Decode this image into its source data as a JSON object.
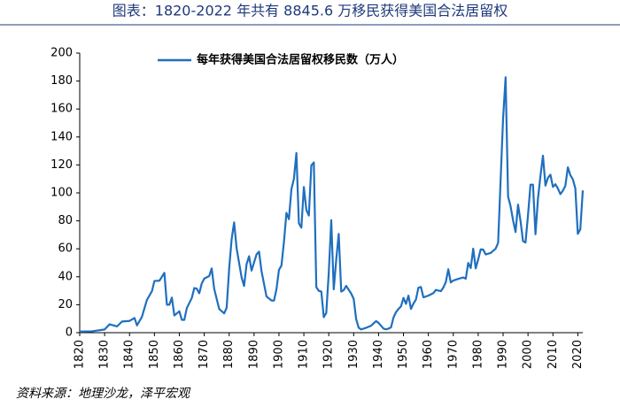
{
  "chart_data": {
    "type": "line",
    "title": "图表：1820-2022 年共有 8845.6 万移民获得美国合法居留权",
    "source": "资料来源：地理沙龙，泽平宏观",
    "x": [
      1820,
      1825,
      1830,
      1832,
      1835,
      1837,
      1840,
      1842,
      1843,
      1845,
      1847,
      1849,
      1850,
      1852,
      1854,
      1855,
      1856,
      1857,
      1858,
      1860,
      1861,
      1862,
      1863,
      1865,
      1866,
      1867,
      1868,
      1869,
      1870,
      1872,
      1873,
      1874,
      1876,
      1878,
      1879,
      1880,
      1881,
      1882,
      1883,
      1885,
      1886,
      1887,
      1888,
      1889,
      1891,
      1892,
      1893,
      1895,
      1897,
      1898,
      1899,
      1900,
      1901,
      1902,
      1903,
      1904,
      1905,
      1906,
      1907,
      1908,
      1909,
      1910,
      1911,
      1912,
      1913,
      1914,
      1915,
      1916,
      1917,
      1918,
      1919,
      1920,
      1921,
      1922,
      1923,
      1924,
      1925,
      1926,
      1927,
      1928,
      1929,
      1930,
      1931,
      1932,
      1933,
      1935,
      1937,
      1939,
      1940,
      1942,
      1943,
      1944,
      1945,
      1946,
      1947,
      1948,
      1949,
      1950,
      1951,
      1952,
      1953,
      1954,
      1955,
      1956,
      1957,
      1958,
      1960,
      1962,
      1963,
      1965,
      1966,
      1967,
      1968,
      1969,
      1970,
      1972,
      1974,
      1975,
      1976,
      1977,
      1978,
      1979,
      1980,
      1981,
      1982,
      1983,
      1985,
      1987,
      1988,
      1989,
      1990,
      1991,
      1992,
      1993,
      1994,
      1995,
      1996,
      1997,
      1998,
      1999,
      2000,
      2001,
      2002,
      2003,
      2004,
      2005,
      2006,
      2007,
      2008,
      2009,
      2010,
      2011,
      2012,
      2013,
      2014,
      2015,
      2016,
      2017,
      2018,
      2019,
      2020,
      2021,
      2022
    ],
    "series": [
      {
        "name": "每年获得美国合法居留权移民数（万人）",
        "color": "#1f6fbf",
        "values": [
          0.8,
          1.0,
          2.3,
          6,
          4.5,
          8,
          8.4,
          10.5,
          5.2,
          11.4,
          23.5,
          29.7,
          37,
          37.2,
          42.8,
          20,
          20,
          25.1,
          12.3,
          15.3,
          9.2,
          9.2,
          17.6,
          24.8,
          31.9,
          31.5,
          28.2,
          35.2,
          38.7,
          40.5,
          46,
          31.3,
          17,
          13.8,
          17.8,
          45.7,
          66.9,
          78.9,
          60.3,
          39.5,
          33.4,
          49,
          54.7,
          44.4,
          56,
          58,
          44,
          25.9,
          23,
          22.9,
          31.1,
          44.9,
          48,
          64.8,
          85.7,
          81.2,
          102.6,
          110,
          128.5,
          78.3,
          75.1,
          104.2,
          87.8,
          83.8,
          119.7,
          121.8,
          32.6,
          29.9,
          29.5,
          11.1,
          14.1,
          43,
          80.5,
          31,
          52.3,
          70.7,
          29.4,
          30.4,
          33.5,
          30.7,
          28,
          24.2,
          9.7,
          3.6,
          2.3,
          3.5,
          5,
          8.3,
          7,
          2.9,
          2.4,
          2.9,
          3.8,
          10.9,
          14.7,
          17,
          18.8,
          24.9,
          20.6,
          26.5,
          17,
          20.8,
          23.7,
          32.2,
          32.7,
          25.3,
          26.5,
          28.3,
          30.6,
          29.7,
          32.3,
          36.2,
          45.4,
          35.9,
          37.3,
          38.5,
          39.5,
          38.6,
          49.9,
          46.2,
          60.1,
          46,
          52.4,
          59.6,
          59.4,
          56,
          57,
          60.1,
          64.3,
          109.1,
          153.6,
          182.7,
          97.4,
          90.4,
          80.4,
          72,
          91.6,
          79.8,
          65.4,
          64.5,
          84.1,
          105.9,
          105.9,
          70.4,
          95.8,
          112.2,
          126.6,
          105.2,
          110.7,
          113,
          104.3,
          106.2,
          103.1,
          99.1,
          101.6,
          105.1,
          118.3,
          112.7,
          109.7,
          103.2,
          70.7,
          74,
          101.8
        ]
      }
    ],
    "xlim": [
      1820,
      2022
    ],
    "xticks": [
      1820,
      1830,
      1840,
      1850,
      1860,
      1870,
      1880,
      1890,
      1900,
      1910,
      1920,
      1930,
      1940,
      1950,
      1960,
      1970,
      1980,
      1990,
      2000,
      2010,
      2020
    ],
    "ylim": [
      0,
      200
    ],
    "yticks": [
      0,
      20,
      40,
      60,
      80,
      100,
      120,
      140,
      160,
      180,
      200
    ],
    "legend": "top"
  }
}
